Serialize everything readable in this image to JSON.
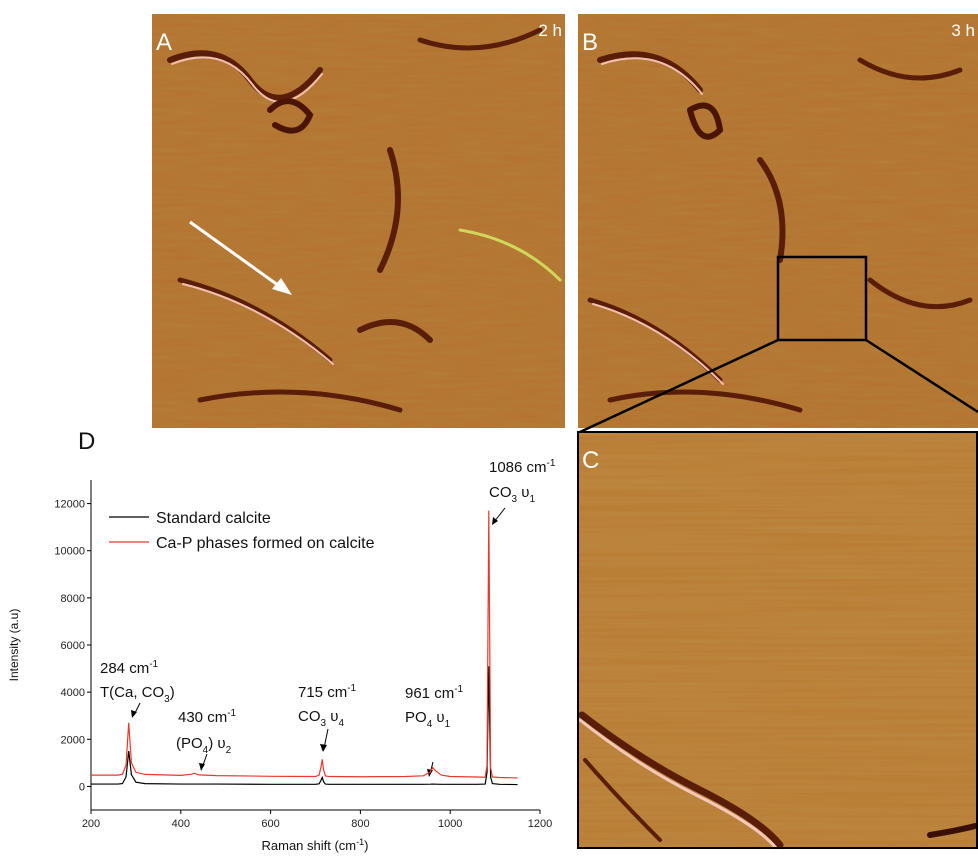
{
  "panels": [
    {
      "label": "A",
      "time": "2 h"
    },
    {
      "label": "B",
      "time": "3 h"
    },
    {
      "label": "C"
    },
    {
      "label": "D"
    }
  ],
  "chart_data": {
    "type": "line",
    "x_label": [
      "Raman shift (cm",
      "-1",
      ")"
    ],
    "y_label": "Intensity (a.u)",
    "x": [
      200,
      260,
      270,
      278,
      284,
      290,
      300,
      320,
      400,
      425,
      430,
      440,
      480,
      600,
      700,
      708,
      712,
      715,
      718,
      722,
      730,
      800,
      900,
      940,
      955,
      961,
      968,
      980,
      1000,
      1060,
      1078,
      1082,
      1086,
      1090,
      1094,
      1110,
      1150
    ],
    "series": [
      {
        "name": "Standard calcite",
        "color": "#000000",
        "values": [
          100,
          100,
          120,
          400,
          1500,
          500,
          180,
          120,
          100,
          100,
          100,
          100,
          100,
          90,
          90,
          110,
          250,
          380,
          200,
          100,
          90,
          90,
          90,
          90,
          95,
          100,
          95,
          90,
          90,
          90,
          100,
          600,
          5100,
          400,
          120,
          90,
          80
        ]
      },
      {
        "name": "Ca-P phases formed on calcite",
        "color": "#e8392e",
        "values": [
          480,
          480,
          520,
          900,
          2700,
          1000,
          600,
          510,
          470,
          520,
          560,
          490,
          460,
          430,
          420,
          480,
          800,
          1150,
          700,
          450,
          420,
          410,
          420,
          450,
          600,
          800,
          650,
          480,
          420,
          400,
          390,
          900,
          11700,
          800,
          400,
          380,
          360
        ]
      }
    ],
    "xlim": [
      200,
      1200
    ],
    "ylim": [
      -1000,
      13000
    ],
    "xticks": [
      200,
      400,
      600,
      800,
      1000,
      1200
    ],
    "yticks": [
      0,
      2000,
      4000,
      6000,
      8000,
      10000,
      12000
    ],
    "legend": "upper left",
    "annotations": [
      {
        "line1": [
          "284 cm",
          "-1"
        ],
        "line2": [
          "T(Ca, CO",
          "3",
          ")"
        ]
      },
      {
        "line1": [
          "430 cm",
          "-1"
        ],
        "line2": [
          "(PO",
          "4",
          ") υ",
          "2"
        ]
      },
      {
        "line1": [
          "715 cm",
          "-1"
        ],
        "line2": [
          "CO",
          "3",
          " υ",
          "4"
        ]
      },
      {
        "line1": [
          "961 cm",
          "-1"
        ],
        "line2": [
          "PO",
          "4",
          " υ",
          "1"
        ]
      },
      {
        "line1": [
          "1086 cm",
          "-1"
        ],
        "line2": [
          "CO",
          "3",
          " υ",
          "1"
        ]
      }
    ]
  }
}
